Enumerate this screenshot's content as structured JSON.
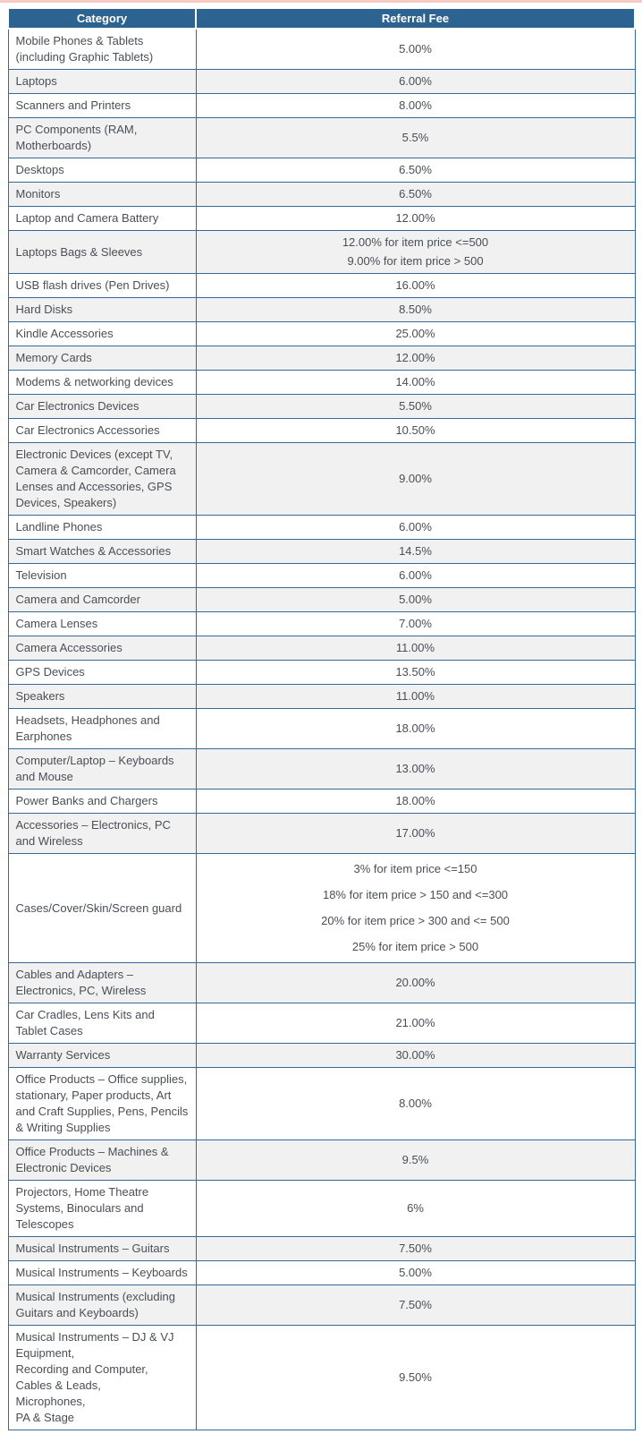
{
  "page": {
    "top_bar_color": "#f5cbc4"
  },
  "table": {
    "colors": {
      "header_bg": "#2d6391",
      "header_text": "#ffffff",
      "border": "#336a99",
      "alt_row_bg": "#f1f1f1",
      "text": "#4a4f55"
    },
    "header": {
      "category": "Category",
      "referral_fee": "Referral Fee"
    },
    "rows": [
      {
        "category": "Mobile Phones & Tablets (including Graphic Tablets)",
        "fees": [
          "5.00%"
        ]
      },
      {
        "category": "Laptops",
        "fees": [
          "6.00%"
        ]
      },
      {
        "category": "Scanners and Printers",
        "fees": [
          "8.00%"
        ]
      },
      {
        "category": "PC Components (RAM, Motherboards)",
        "fees": [
          "5.5%"
        ]
      },
      {
        "category": "Desktops",
        "fees": [
          "6.50%"
        ]
      },
      {
        "category": "Monitors",
        "fees": [
          "6.50%"
        ]
      },
      {
        "category": "Laptop and Camera Battery",
        "fees": [
          "12.00%"
        ]
      },
      {
        "category": "Laptops Bags & Sleeves",
        "fees": [
          "12.00% for item price <=500",
          "9.00% for item price > 500"
        ]
      },
      {
        "category": "USB flash drives (Pen Drives)",
        "fees": [
          "16.00%"
        ]
      },
      {
        "category": "Hard Disks",
        "fees": [
          "8.50%"
        ]
      },
      {
        "category": "Kindle Accessories",
        "fees": [
          "25.00%"
        ]
      },
      {
        "category": "Memory Cards",
        "fees": [
          "12.00%"
        ]
      },
      {
        "category": "Modems & networking devices",
        "fees": [
          "14.00%"
        ]
      },
      {
        "category": "Car Electronics Devices",
        "fees": [
          "5.50%"
        ]
      },
      {
        "category": "Car Electronics Accessories",
        "fees": [
          "10.50%"
        ]
      },
      {
        "category": "Electronic Devices (except TV, Camera & Camcorder, Camera Lenses and Accessories, GPS Devices, Speakers)",
        "fees": [
          "9.00%"
        ]
      },
      {
        "category": "Landline Phones",
        "fees": [
          "6.00%"
        ]
      },
      {
        "category": "Smart Watches & Accessories",
        "fees": [
          "14.5%"
        ]
      },
      {
        "category": "Television",
        "fees": [
          "6.00%"
        ]
      },
      {
        "category": "Camera and Camcorder",
        "fees": [
          "5.00%"
        ]
      },
      {
        "category": "Camera Lenses",
        "fees": [
          "7.00%"
        ]
      },
      {
        "category": "Camera Accessories",
        "fees": [
          "11.00%"
        ]
      },
      {
        "category": "GPS Devices",
        "fees": [
          "13.50%"
        ]
      },
      {
        "category": "Speakers",
        "fees": [
          "11.00%"
        ]
      },
      {
        "category": "Headsets, Headphones and Earphones",
        "fees": [
          "18.00%"
        ]
      },
      {
        "category": "Computer/Laptop – Keyboards and Mouse",
        "fees": [
          "13.00%"
        ]
      },
      {
        "category": "Power Banks and Chargers",
        "fees": [
          "18.00%"
        ]
      },
      {
        "category": "Accessories – Electronics, PC and Wireless",
        "fees": [
          "17.00%"
        ]
      },
      {
        "category": "Cases/Cover/Skin/Screen  guard",
        "spaced": true,
        "fees": [
          "3% for item price <=150",
          "18% for item price > 150 and <=300",
          "20% for item price > 300 and <= 500",
          "25% for item price > 500"
        ]
      },
      {
        "category": "Cables and Adapters – Electronics, PC, Wireless",
        "fees": [
          "20.00%"
        ]
      },
      {
        "category": "Car Cradles, Lens Kits and Tablet Cases",
        "fees": [
          "21.00%"
        ]
      },
      {
        "category": "Warranty Services",
        "fees": [
          "30.00%"
        ]
      },
      {
        "category": "Office Products – Office supplies, stationary, Paper products, Art and Craft Supplies, Pens, Pencils & Writing Supplies",
        "fees": [
          "8.00%"
        ]
      },
      {
        "category": "Office Products – Machines & Electronic Devices",
        "fees": [
          "9.5%"
        ]
      },
      {
        "category": "Projectors, Home Theatre Systems, Binoculars and Telescopes",
        "fees": [
          "6%"
        ]
      },
      {
        "category": "Musical Instruments – Guitars",
        "fees": [
          "7.50%"
        ]
      },
      {
        "category": "Musical Instruments – Keyboards",
        "fees": [
          "5.00%"
        ]
      },
      {
        "category": "Musical Instruments (excluding Guitars and Keyboards)",
        "fees": [
          "7.50%"
        ]
      },
      {
        "category": [
          "Musical Instruments – DJ & VJ Equipment,",
          "Recording and Computer,",
          "Cables & Leads,",
          "Microphones,",
          "PA & Stage"
        ],
        "fees": [
          "9.50%"
        ]
      }
    ]
  }
}
